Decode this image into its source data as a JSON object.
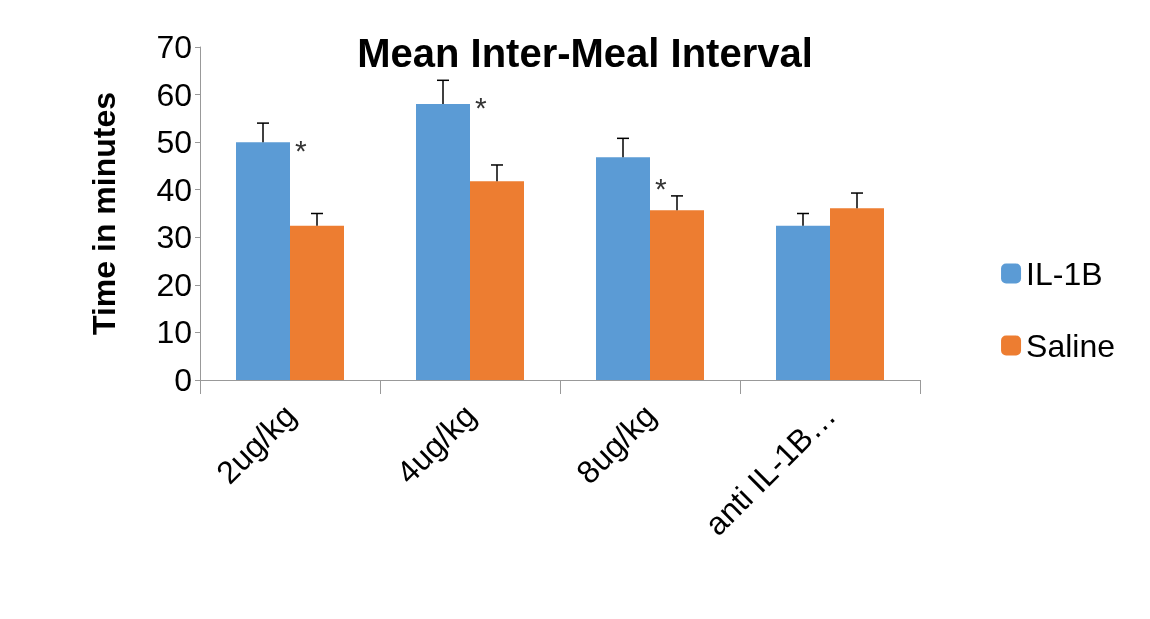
{
  "chart_data": {
    "type": "bar",
    "title": "Mean Inter-Meal Interval",
    "ylabel": "Time in minutes",
    "categories": [
      "2ug/kg",
      "4ug/kg",
      "8ug/kg",
      "anti IL-1B…"
    ],
    "series": [
      {
        "name": "IL-1B",
        "color": "#5b9bd5",
        "values": [
          50,
          58,
          46.8,
          32.4
        ],
        "errors": [
          [
            50,
            54
          ],
          [
            58,
            63
          ],
          [
            46.8,
            50.8
          ],
          [
            32.4,
            35
          ]
        ]
      },
      {
        "name": "Saline",
        "color": "#ed7d31",
        "values": [
          32.4,
          41.8,
          35.7,
          36.1
        ],
        "errors": [
          [
            32.4,
            35
          ],
          [
            41.8,
            45.2
          ],
          [
            35.7,
            38.7
          ],
          [
            36.1,
            39.3
          ]
        ]
      }
    ],
    "annotations": [
      {
        "text": "*",
        "x": "2ug/kg",
        "y": 50
      },
      {
        "text": "*",
        "x": "4ug/kg",
        "y": 59
      },
      {
        "text": "*",
        "x": "8ug/kg",
        "y": 42
      }
    ],
    "ylim": [
      0,
      70
    ],
    "yticks": [
      0,
      10,
      20,
      30,
      40,
      50,
      60,
      70
    ],
    "grid": false,
    "legend": "right"
  }
}
